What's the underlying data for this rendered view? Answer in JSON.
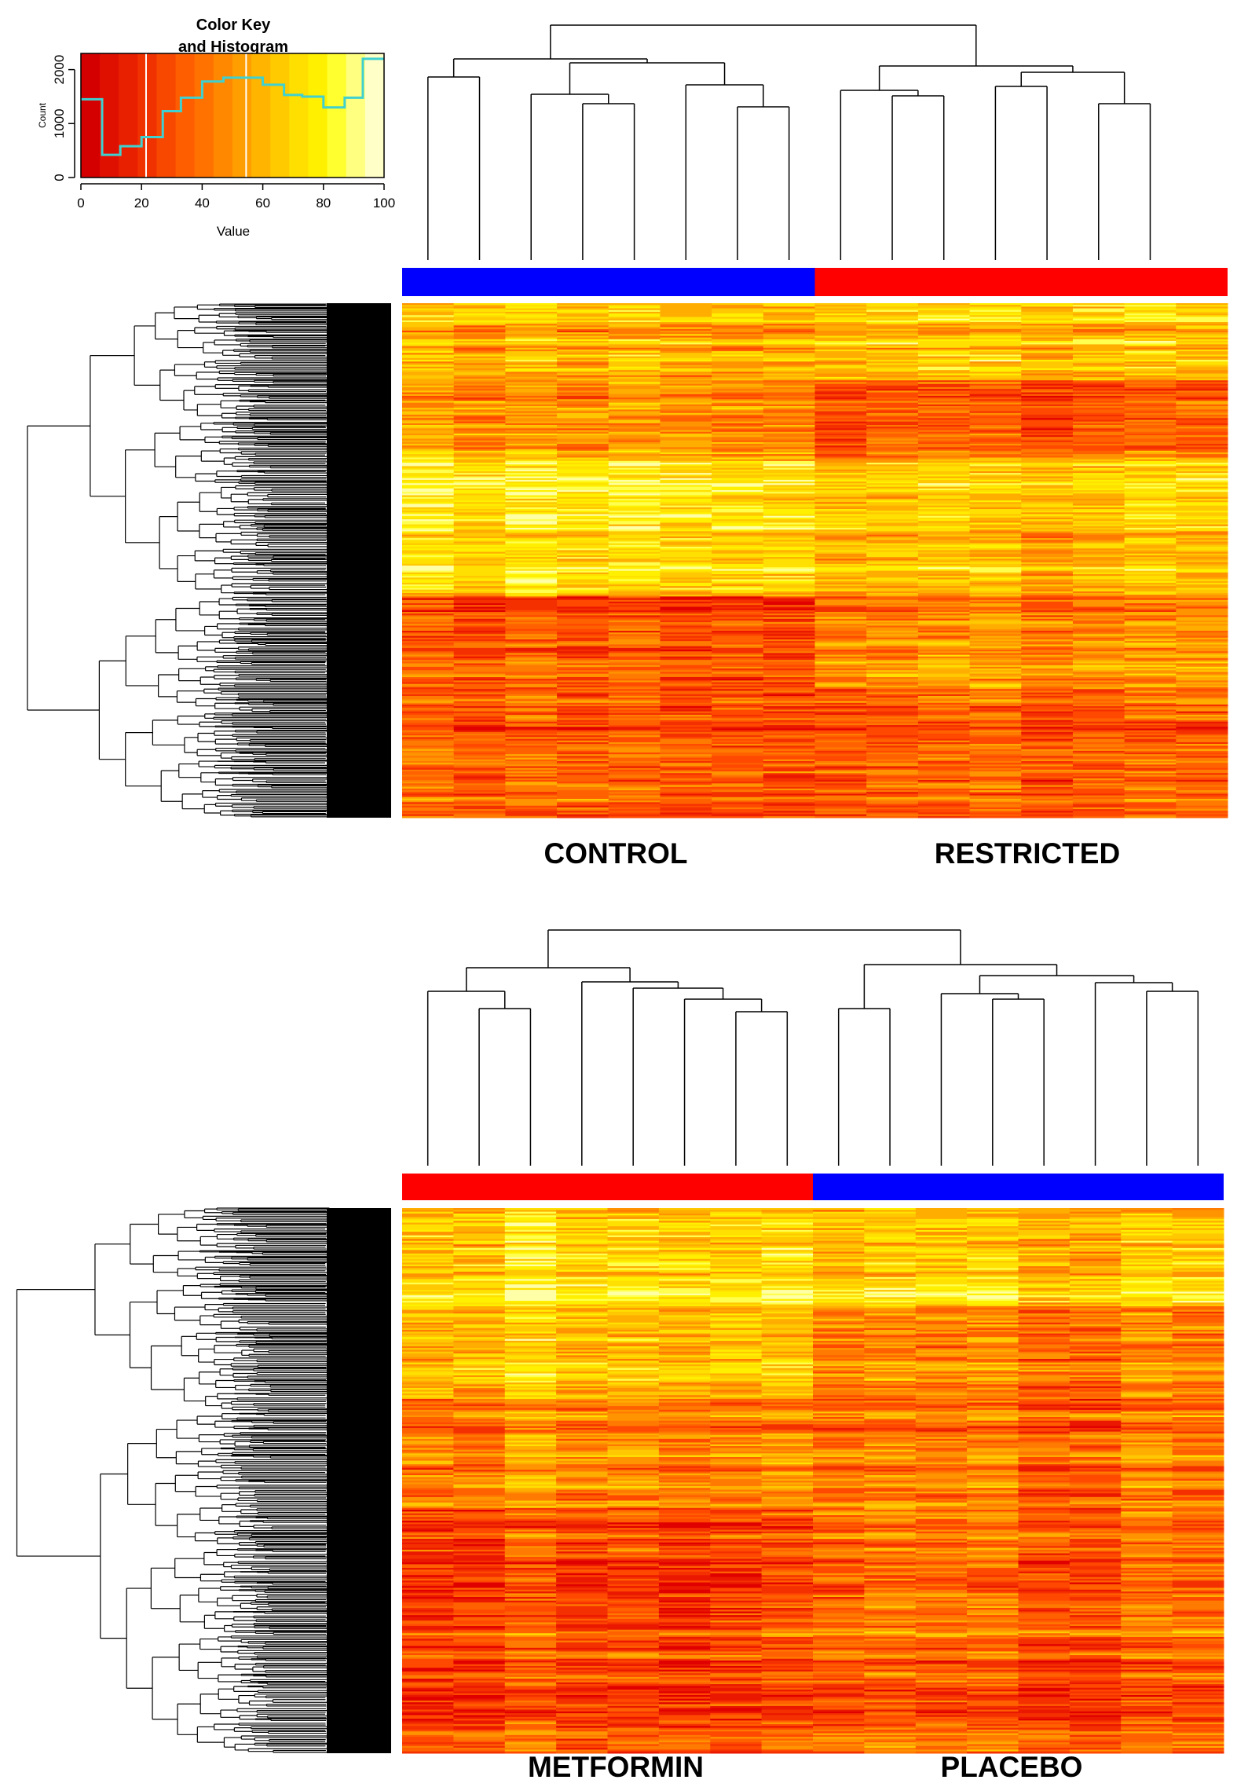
{
  "color_key": {
    "title_line1": "Color Key",
    "title_line2": "and Histogram",
    "x_label": "Value",
    "y_label": "Count",
    "x_ticks": [
      "0",
      "20",
      "40",
      "60",
      "80",
      "100"
    ],
    "y_ticks": [
      "0",
      "1000",
      "2000"
    ],
    "palette": [
      "#d40000",
      "#e01000",
      "#e82000",
      "#f03200",
      "#f84800",
      "#ff5e00",
      "#ff7200",
      "#ff8800",
      "#ff9e00",
      "#ffb400",
      "#ffca00",
      "#ffdf00",
      "#fff000",
      "#ffff30",
      "#ffff80",
      "#ffffc8"
    ],
    "histogram_line_color": "#40d0d0"
  },
  "chart_data": [
    {
      "type": "bar",
      "title": "Color Key and Histogram",
      "xlabel": "Value",
      "ylabel": "Count",
      "xlim": [
        0,
        100
      ],
      "ylim": [
        0,
        2300
      ],
      "bin_edges": [
        0,
        7,
        13,
        20,
        27,
        33,
        40,
        47,
        53,
        60,
        67,
        73,
        80,
        87,
        93,
        100
      ],
      "values": [
        1450,
        420,
        580,
        750,
        1230,
        1480,
        1780,
        1850,
        1850,
        1720,
        1530,
        1500,
        1300,
        1480,
        2200
      ],
      "vertical_lines": [
        21.5,
        54.5
      ]
    },
    {
      "type": "heatmap",
      "groups": [
        {
          "label": "CONTROL",
          "color": "#0000ff",
          "n_samples": 8
        },
        {
          "label": "RESTRICTED",
          "color": "#ff0000",
          "n_samples": 8
        }
      ],
      "n_rows": 300,
      "color_scale": "heat (red = low, pale yellow = high)"
    },
    {
      "type": "heatmap",
      "groups": [
        {
          "label": "METFORMIN",
          "color": "#ff0000",
          "n_samples": 8
        },
        {
          "label": "PLACEBO",
          "color": "#0000ff",
          "n_samples": 8
        }
      ],
      "n_rows": 300,
      "color_scale": "heat (red = low, pale yellow = high)"
    }
  ]
}
